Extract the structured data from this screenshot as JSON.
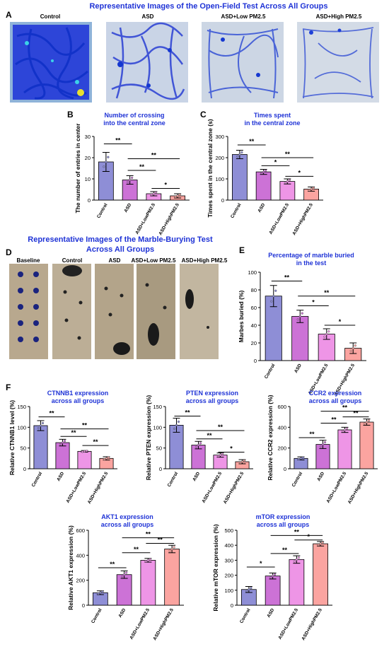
{
  "figure": {
    "open_field": {
      "title": "Representative Images of the Open-Field Test Across All Groups",
      "letter": "A",
      "groups": [
        "Control",
        "ASD",
        "ASD+Low PM2.5",
        "ASD+High PM2.5"
      ]
    },
    "marble": {
      "title_line1": "Representative Images of the Marble-Burying Test",
      "title_line2": "Across All Groups",
      "letter": "D",
      "groups": [
        "Baseline",
        "Control",
        "ASD",
        "ASD+Low PM2.5",
        "ASD+High PM2.5"
      ]
    },
    "colors": {
      "title_blue": "#1f33d6",
      "control": "#8e8ed6",
      "asd": "#cc72d6",
      "low": "#ee95e6",
      "high": "#fba4a0"
    }
  },
  "chart_data": [
    {
      "id": "B",
      "letter": "B",
      "type": "bar",
      "title": "Number of crossing\ninto the central zone",
      "ylabel": "The number of entries in center",
      "categories": [
        "Control",
        "ASD",
        "ASD+LowPM2.5",
        "ASD+HighPM2.5"
      ],
      "values": [
        18,
        9.5,
        3,
        2
      ],
      "errors": [
        4.5,
        2,
        1,
        1
      ],
      "ylim": [
        0,
        30
      ],
      "yticks": [
        0,
        10,
        20,
        30
      ],
      "significance": [
        {
          "from": 0,
          "to": 1,
          "label": "**",
          "level": 26.5
        },
        {
          "from": 1,
          "to": 2,
          "label": "**",
          "level": 14
        },
        {
          "from": 1,
          "to": 3,
          "label": "**",
          "level": 19.5
        },
        {
          "from": 2,
          "to": 3,
          "label": "*",
          "level": 5.5
        }
      ]
    },
    {
      "id": "C",
      "letter": "C",
      "type": "bar",
      "title": "Times spent\nin the central zone",
      "ylabel": "Times spent in the central zone (s)",
      "categories": [
        "Control",
        "ASD",
        "ASD+LowPM2.5",
        "ASD+HighPM2.5"
      ],
      "values": [
        215,
        133,
        88,
        52
      ],
      "errors": [
        20,
        12,
        12,
        10
      ],
      "ylim": [
        0,
        300
      ],
      "yticks": [
        0,
        100,
        200,
        300
      ],
      "significance": [
        {
          "from": 0,
          "to": 1,
          "label": "**",
          "level": 260
        },
        {
          "from": 1,
          "to": 2,
          "label": "*",
          "level": 162
        },
        {
          "from": 1,
          "to": 3,
          "label": "**",
          "level": 200
        },
        {
          "from": 2,
          "to": 3,
          "label": "*",
          "level": 112
        }
      ]
    },
    {
      "id": "E",
      "letter": "E",
      "type": "bar",
      "title": "Percentage of marble buried\nin the test",
      "ylabel": "Marbes buried (%)",
      "categories": [
        "Control",
        "ASD",
        "ASD+LowPM2.5",
        "ASD+HighPM2.5"
      ],
      "values": [
        73,
        50,
        30,
        14
      ],
      "errors": [
        12,
        7,
        6,
        6
      ],
      "ylim": [
        0,
        100
      ],
      "yticks": [
        0,
        20,
        40,
        60,
        80,
        100
      ],
      "significance": [
        {
          "from": 0,
          "to": 1,
          "label": "**",
          "level": 90
        },
        {
          "from": 1,
          "to": 2,
          "label": "*",
          "level": 62
        },
        {
          "from": 1,
          "to": 3,
          "label": "**",
          "level": 73
        },
        {
          "from": 2,
          "to": 3,
          "label": "*",
          "level": 40
        }
      ]
    },
    {
      "id": "F1",
      "letter": "F",
      "type": "bar",
      "title": "CTNNB1 expression\nacross all groups",
      "ylabel": "Relative CTNNB1 level (%)",
      "categories": [
        "Control",
        "ASD",
        "ASD+LowPM2.5",
        "ASD+HighPM2.5"
      ],
      "values": [
        104,
        63,
        42,
        25
      ],
      "errors": [
        12,
        8,
        2,
        4
      ],
      "ylim": [
        0,
        150
      ],
      "yticks": [
        0,
        50,
        100,
        150
      ],
      "significance": [
        {
          "from": 0,
          "to": 1,
          "label": "**",
          "level": 125
        },
        {
          "from": 1,
          "to": 2,
          "label": "**",
          "level": 78
        },
        {
          "from": 1,
          "to": 3,
          "label": "**",
          "level": 96
        },
        {
          "from": 2,
          "to": 3,
          "label": "**",
          "level": 56
        }
      ]
    },
    {
      "id": "F2",
      "type": "bar",
      "title": "PTEN expression\nacross all groups",
      "ylabel": "Relative PTEN expression (%)",
      "categories": [
        "Control",
        "ASD",
        "ASD+LowPM2.5",
        "ASD+HighPM2.5"
      ],
      "values": [
        105,
        57,
        33,
        17
      ],
      "errors": [
        17,
        9,
        5,
        5
      ],
      "ylim": [
        0,
        150
      ],
      "yticks": [
        0,
        50,
        100,
        150
      ],
      "significance": [
        {
          "from": 0,
          "to": 1,
          "label": "**",
          "level": 127
        },
        {
          "from": 1,
          "to": 2,
          "label": "**",
          "level": 72
        },
        {
          "from": 1,
          "to": 3,
          "label": "**",
          "level": 92
        },
        {
          "from": 2,
          "to": 3,
          "label": "*",
          "level": 40
        }
      ]
    },
    {
      "id": "F3",
      "type": "bar",
      "title": "CCR2 expression\nacross all groups",
      "ylabel": "Relative CCR2 expression (%)",
      "categories": [
        "Control",
        "ASD",
        "ASD+LowPM2.5",
        "ASD+HighPM2.5"
      ],
      "values": [
        100,
        235,
        375,
        450
      ],
      "errors": [
        15,
        40,
        25,
        30
      ],
      "ylim": [
        0,
        600
      ],
      "yticks": [
        0,
        200,
        400,
        600
      ],
      "significance": [
        {
          "from": 0,
          "to": 1,
          "label": "**",
          "level": 300
        },
        {
          "from": 1,
          "to": 2,
          "label": "**",
          "level": 440
        },
        {
          "from": 1,
          "to": 3,
          "label": "**",
          "level": 555
        },
        {
          "from": 2,
          "to": 3,
          "label": "**",
          "level": 500
        }
      ]
    },
    {
      "id": "F4",
      "type": "bar",
      "title": "AKT1 expression\nacross all groups",
      "ylabel": "Relative AKT1 expression (%)",
      "categories": [
        "Control",
        "ASD",
        "ASD+LowPM2.5",
        "ASD+HighPM2.5"
      ],
      "values": [
        100,
        245,
        360,
        450
      ],
      "errors": [
        15,
        30,
        15,
        30
      ],
      "ylim": [
        0,
        600
      ],
      "yticks": [
        0,
        200,
        400,
        600
      ],
      "significance": [
        {
          "from": 0,
          "to": 1,
          "label": "**",
          "level": 300
        },
        {
          "from": 1,
          "to": 2,
          "label": "**",
          "level": 420
        },
        {
          "from": 1,
          "to": 3,
          "label": "**",
          "level": 540
        },
        {
          "from": 2,
          "to": 3,
          "label": "**",
          "level": 495
        }
      ]
    },
    {
      "id": "F5",
      "type": "bar",
      "title": "mTOR expression\nacross all groups",
      "ylabel": "Relative mTOR expression (%)",
      "categories": [
        "Control",
        "ASD",
        "ASD+LowPM2.5",
        "ASD+HighPM2.5"
      ],
      "values": [
        105,
        195,
        305,
        410
      ],
      "errors": [
        20,
        20,
        25,
        15
      ],
      "ylim": [
        0,
        500
      ],
      "yticks": [
        0,
        100,
        200,
        300,
        400,
        500
      ],
      "significance": [
        {
          "from": 0,
          "to": 1,
          "label": "*",
          "level": 255
        },
        {
          "from": 1,
          "to": 2,
          "label": "**",
          "level": 345
        },
        {
          "from": 1,
          "to": 3,
          "label": "**",
          "level": 465
        },
        {
          "from": 2,
          "to": 3,
          "label": "*",
          "level": 435
        }
      ]
    }
  ]
}
